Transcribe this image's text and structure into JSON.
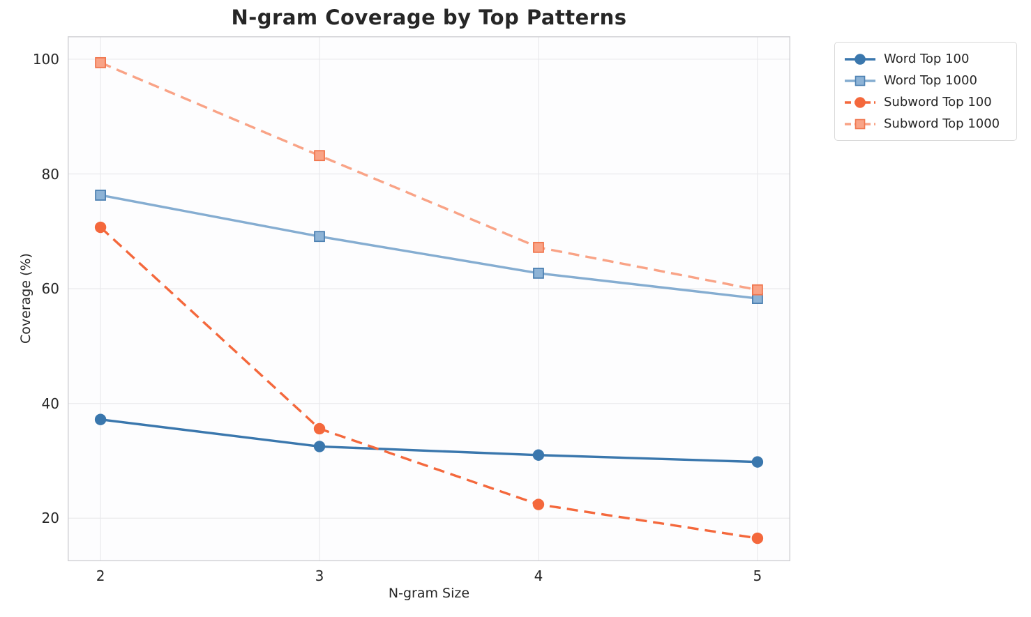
{
  "chart_data": {
    "type": "line",
    "title": "N-gram Coverage by Top Patterns",
    "xlabel": "N-gram Size",
    "ylabel": "Coverage (%)",
    "x": [
      2,
      3,
      4,
      5
    ],
    "series": [
      {
        "name": "Word Top 100",
        "values": [
          37.2,
          32.5,
          31.0,
          29.8
        ],
        "color": "#3a77ad",
        "line_style": "solid",
        "marker": "circle",
        "marker_fill": "#3a77ad",
        "marker_edge": "#3a77ad"
      },
      {
        "name": "Word Top 1000",
        "values": [
          76.3,
          69.1,
          62.7,
          58.3
        ],
        "color": "#85add1",
        "line_style": "solid",
        "marker": "square",
        "marker_fill": "#8db3d6",
        "marker_edge": "#4d81b2"
      },
      {
        "name": "Subword Top 100",
        "values": [
          70.7,
          35.6,
          22.4,
          16.5
        ],
        "color": "#f4683c",
        "line_style": "dashed",
        "marker": "circle",
        "marker_fill": "#f4683c",
        "marker_edge": "#f4683c"
      },
      {
        "name": "Subword Top 1000",
        "values": [
          99.4,
          83.2,
          67.2,
          59.8
        ],
        "color": "#f9a386",
        "line_style": "dashed",
        "marker": "square",
        "marker_fill": "#f9a386",
        "marker_edge": "#f0764e"
      }
    ],
    "xticks": [
      2,
      3,
      4,
      5
    ],
    "yticks": [
      20,
      40,
      60,
      80,
      100
    ],
    "xlim": [
      1.85,
      5.15
    ],
    "ylim": [
      12.5,
      104.0
    ],
    "grid": true,
    "legend_position": "outside-upper-right",
    "style": {
      "grid_color": "#e9e9ec",
      "spine_color": "#d2d2d6",
      "plot_background": "#fdfdfe",
      "text_color": "#262626"
    }
  }
}
